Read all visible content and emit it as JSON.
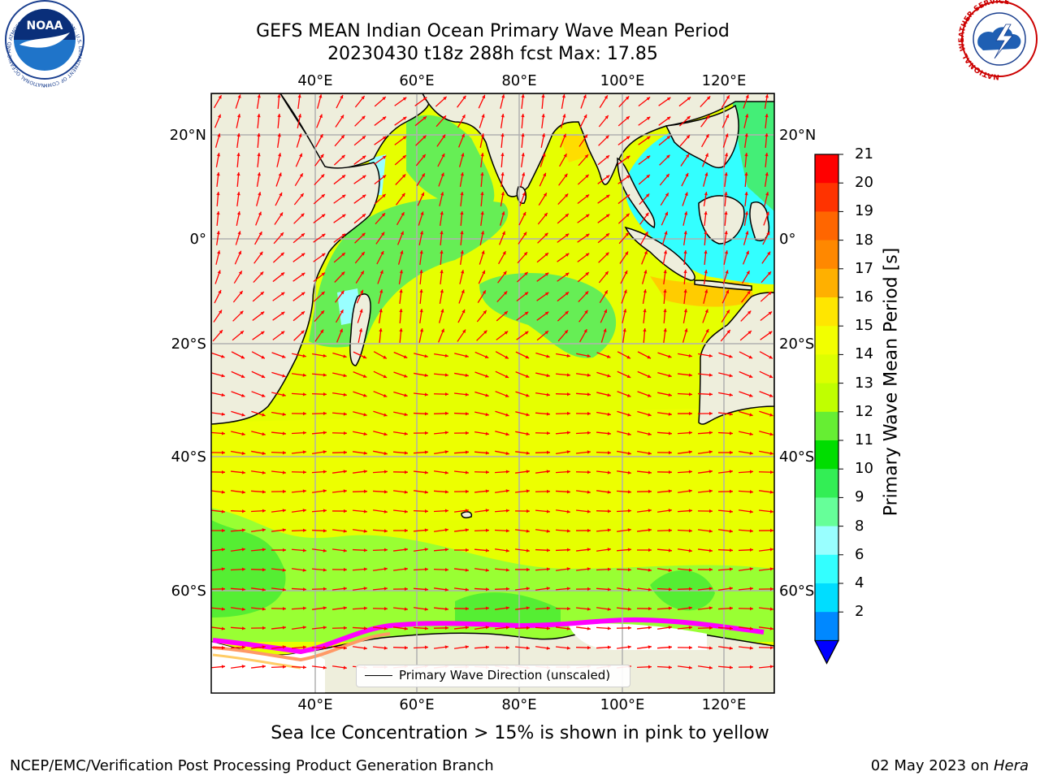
{
  "title": {
    "line1": "GEFS MEAN Indian Ocean Primary Wave Mean Period",
    "line2": "20230430 t18z 288h fcst   Max: 17.85"
  },
  "map": {
    "lon_labels_top": [
      "40°E",
      "60°E",
      "80°E",
      "100°E",
      "120°E"
    ],
    "lon_labels_bottom": [
      "40°E",
      "60°E",
      "80°E",
      "100°E",
      "120°E"
    ],
    "lat_labels_left": [
      "20°N",
      "0°",
      "20°S",
      "40°S",
      "60°S"
    ],
    "lat_labels_right": [
      "20°N",
      "0°",
      "20°S",
      "40°S",
      "60°S"
    ],
    "lon_range": [
      20,
      130
    ],
    "arrow_color": "#ff0000",
    "land_color": "#eeeedc",
    "ice_colors": [
      "#ff00ff",
      "#ff9966",
      "#ffcc66"
    ]
  },
  "legend": {
    "label": "Primary Wave Direction (unscaled)"
  },
  "colorbar": {
    "label": "Primary Wave Mean Period [s]",
    "ticks": [
      "21",
      "20",
      "19",
      "18",
      "17",
      "16",
      "15",
      "14",
      "13",
      "12",
      "11",
      "10",
      "9",
      "8",
      "6",
      "4",
      "2"
    ],
    "colors_top_to_bottom": [
      "#ff0000",
      "#ff3300",
      "#ff6600",
      "#ff8800",
      "#ffb000",
      "#ffe600",
      "#f2ff00",
      "#ddff00",
      "#c0ff00",
      "#66ee33",
      "#00dd00",
      "#33ee55",
      "#66ff99",
      "#99ffff",
      "#33ffff",
      "#00ddff",
      "#0088ff"
    ],
    "underflow_color": "#0000ff"
  },
  "note": "Sea Ice Concentration > 15% is shown in pink to yellow",
  "footer": {
    "left": "NCEP/EMC/Verification Post Processing Product Generation Branch",
    "right_date": "02 May 2023 on ",
    "right_host": "Hera"
  },
  "logos": {
    "noaa_ring_text": "NATIONAL OCEANIC AND ATMOSPHERIC ADMINISTRATION · U.S. DEPARTMENT OF COMMERCE",
    "noaa_center": "NOAA",
    "nws_ring_text": "NATIONAL WEATHER SERVICE"
  }
}
